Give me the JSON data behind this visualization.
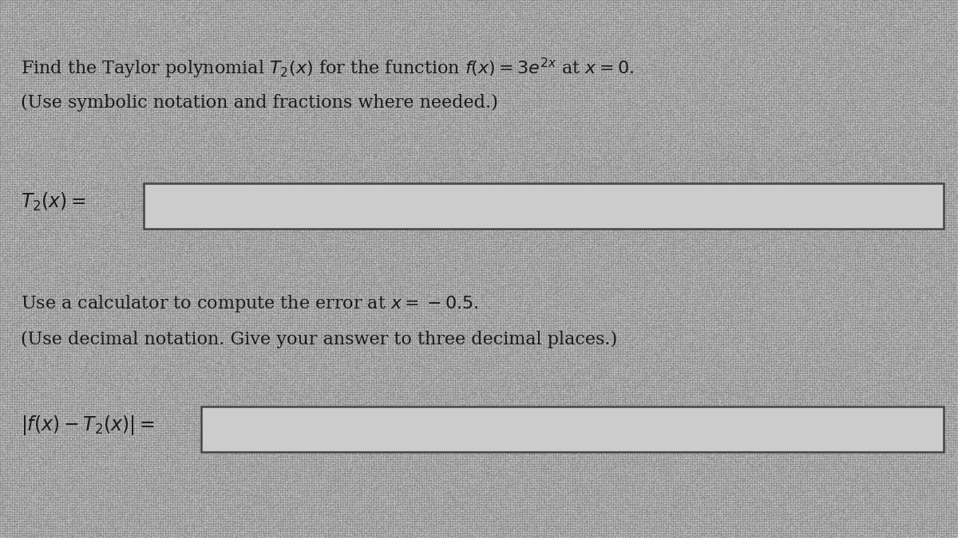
{
  "bg_color_dark": "#8a8a8a",
  "bg_color_light": "#b8b8b8",
  "text_color": "#1a1a1a",
  "box_face": "#cccccc",
  "box_edge": "#444444",
  "line1a": "Find the Taylor polynomial ",
  "line1b": "$T_2(x)$",
  "line1c": " for the function ",
  "line1d": "$f(x) = 3e^{2x}$",
  "line1e": " at ",
  "line1f": "$x = 0.$",
  "line2": "(Use symbolic notation and fractions where needed.)",
  "label1": "$T_2(x) =$",
  "line3": "Use a calculator to compute the error at $x = -0.5.$",
  "line4": "(Use decimal notation. Give your answer to three decimal places.)",
  "label2": "$|f(x) - T_2(x)| =$",
  "font_size_main": 16,
  "font_size_label": 17
}
